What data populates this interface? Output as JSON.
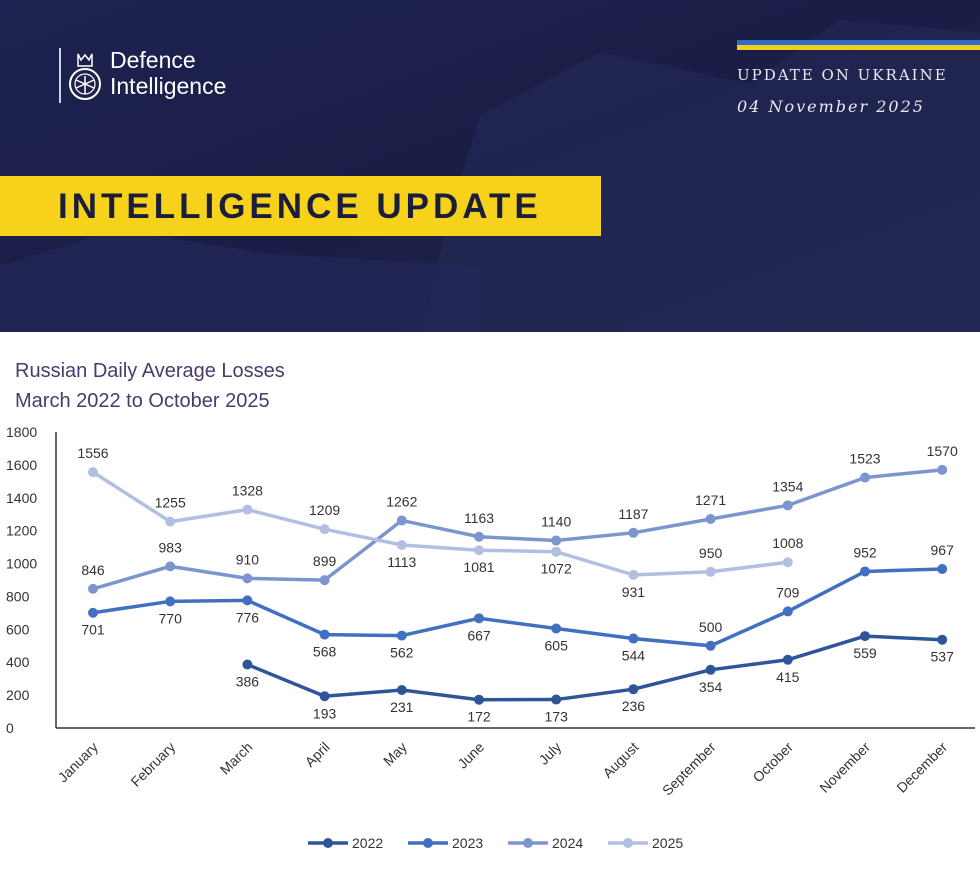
{
  "header": {
    "logo_line1": "Defence",
    "logo_line2": "Intelligence",
    "kicker": "UPDATE ON UKRAINE",
    "date": "04 November 2025",
    "banner": "INTELLIGENCE UPDATE"
  },
  "chart_data": {
    "type": "line",
    "title_line1": "Russian Daily Average Losses",
    "title_line2": "March 2022 to October 2025",
    "categories": [
      "January",
      "February",
      "March",
      "April",
      "May",
      "June",
      "July",
      "August",
      "September",
      "October",
      "November",
      "December"
    ],
    "ylim": [
      0,
      1800
    ],
    "yticks": [
      0,
      200,
      400,
      600,
      800,
      1000,
      1200,
      1400,
      1600,
      1800
    ],
    "legend_position": "bottom",
    "series": [
      {
        "name": "2022",
        "color": "#2e5597",
        "values": [
          null,
          null,
          386,
          193,
          231,
          172,
          173,
          236,
          354,
          415,
          559,
          537
        ],
        "label_pos": [
          "",
          "",
          "below",
          "below",
          "below",
          "below",
          "below",
          "below",
          "below",
          "below",
          "below",
          "below"
        ]
      },
      {
        "name": "2023",
        "color": "#4270c0",
        "values": [
          701,
          770,
          776,
          568,
          562,
          667,
          605,
          544,
          500,
          709,
          952,
          967
        ],
        "label_pos": [
          "below",
          "below",
          "below",
          "below",
          "below",
          "below",
          "below",
          "below",
          "above",
          "above",
          "above",
          "above"
        ]
      },
      {
        "name": "2024",
        "color": "#7d95cf",
        "values": [
          846,
          983,
          910,
          899,
          1262,
          1163,
          1140,
          1187,
          1271,
          1354,
          1523,
          1570
        ],
        "label_pos": [
          "above",
          "above",
          "above",
          "above",
          "above",
          "above",
          "above",
          "above",
          "above",
          "above",
          "above",
          "above"
        ]
      },
      {
        "name": "2025",
        "color": "#b3bfe1",
        "values": [
          1556,
          1255,
          1328,
          1209,
          1113,
          1081,
          1072,
          931,
          950,
          1008,
          null,
          null
        ],
        "label_pos": [
          "above",
          "above",
          "above",
          "above",
          "below",
          "below",
          "below",
          "below",
          "above",
          "above",
          "",
          ""
        ]
      }
    ]
  }
}
